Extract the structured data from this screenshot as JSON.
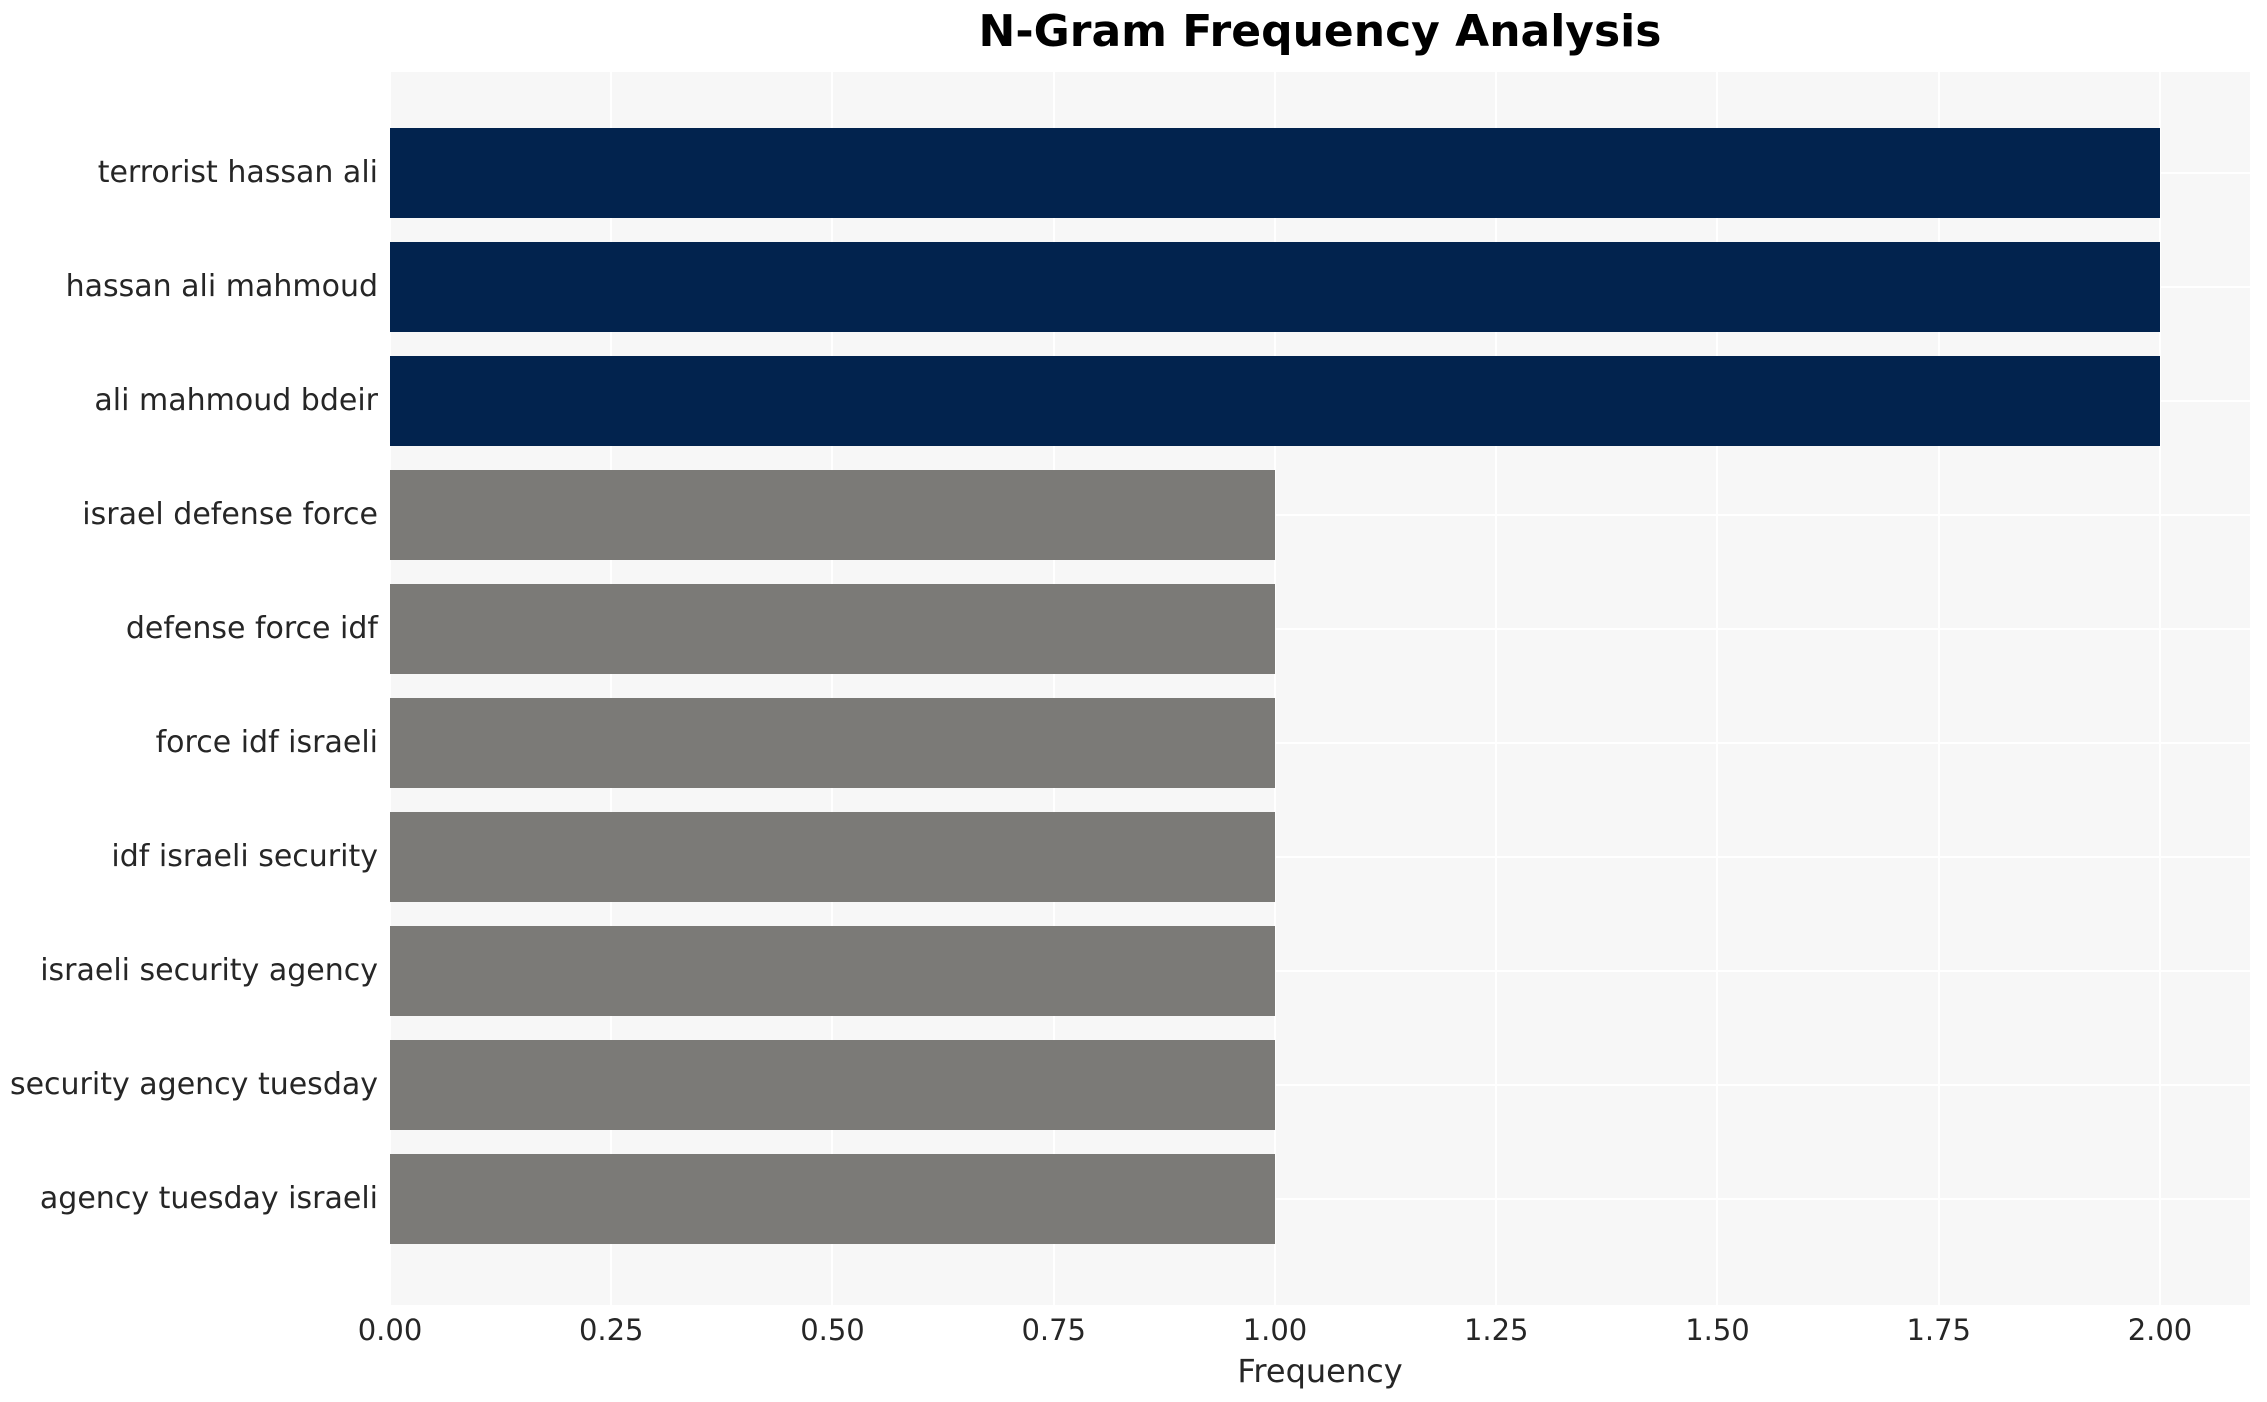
{
  "chart_data": {
    "type": "bar",
    "orientation": "horizontal",
    "title": "N-Gram Frequency Analysis",
    "xlabel": "Frequency",
    "ylabel": "",
    "categories": [
      "terrorist hassan ali",
      "hassan ali mahmoud",
      "ali mahmoud bdeir",
      "israel defense force",
      "defense force idf",
      "force idf israeli",
      "idf israeli security",
      "israeli security agency",
      "security agency tuesday",
      "agency tuesday israeli"
    ],
    "values": [
      2,
      2,
      2,
      1,
      1,
      1,
      1,
      1,
      1,
      1
    ],
    "bar_colors": [
      "#02234e",
      "#02234e",
      "#02234e",
      "#7b7a77",
      "#7b7a77",
      "#7b7a77",
      "#7b7a77",
      "#7b7a77",
      "#7b7a77",
      "#7b7a77"
    ],
    "xlim": [
      0,
      2.1017
    ],
    "xtick_values": [
      0.0,
      0.25,
      0.5,
      0.75,
      1.0,
      1.25,
      1.5,
      1.75,
      2.0
    ],
    "xtick_labels": [
      "0.00",
      "0.25",
      "0.50",
      "0.75",
      "1.00",
      "1.25",
      "1.50",
      "1.75",
      "2.00"
    ],
    "grid": true,
    "legend": false,
    "plot_bg_color": "#f7f7f7",
    "grid_color": "#ffffff",
    "figure_bg_color": "#ffffff",
    "accent_color_high": "#02234e",
    "accent_color_low": "#7b7a77"
  }
}
